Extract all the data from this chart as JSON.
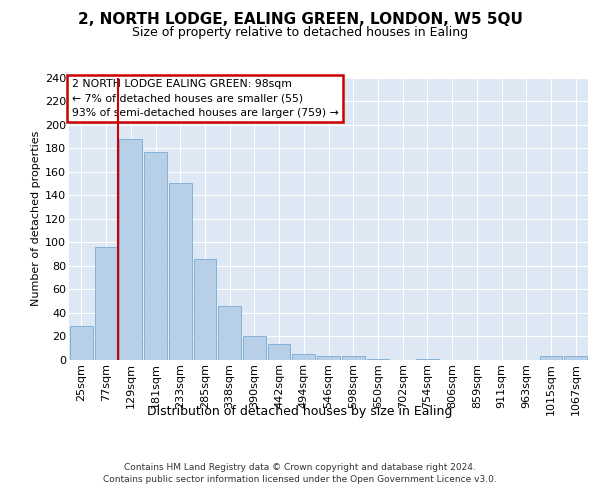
{
  "title1": "2, NORTH LODGE, EALING GREEN, LONDON, W5 5QU",
  "title2": "Size of property relative to detached houses in Ealing",
  "xlabel": "Distribution of detached houses by size in Ealing",
  "ylabel": "Number of detached properties",
  "bar_labels": [
    "25sqm",
    "77sqm",
    "129sqm",
    "181sqm",
    "233sqm",
    "285sqm",
    "338sqm",
    "390sqm",
    "442sqm",
    "494sqm",
    "546sqm",
    "598sqm",
    "650sqm",
    "702sqm",
    "754sqm",
    "806sqm",
    "859sqm",
    "911sqm",
    "963sqm",
    "1015sqm",
    "1067sqm"
  ],
  "bar_heights": [
    29,
    96,
    188,
    177,
    150,
    86,
    46,
    20,
    14,
    5,
    3,
    3,
    1,
    0,
    1,
    0,
    0,
    0,
    0,
    3,
    3
  ],
  "bar_color": "#b8cfe8",
  "bar_edge_color": "#7aabd4",
  "vline_x": 1.5,
  "vline_color": "#cc0000",
  "annotation_text": "2 NORTH LODGE EALING GREEN: 98sqm\n← 7% of detached houses are smaller (55)\n93% of semi-detached houses are larger (759) →",
  "annotation_box_color": "#ffffff",
  "annotation_box_edge": "#cc0000",
  "ylim": [
    0,
    240
  ],
  "yticks": [
    0,
    20,
    40,
    60,
    80,
    100,
    120,
    140,
    160,
    180,
    200,
    220,
    240
  ],
  "footer1": "Contains HM Land Registry data © Crown copyright and database right 2024.",
  "footer2": "Contains public sector information licensed under the Open Government Licence v3.0.",
  "bg_color": "#dde8f4",
  "fig_bg_color": "#ffffff",
  "grid_color": "#ffffff",
  "title1_fontsize": 11,
  "title2_fontsize": 9,
  "ylabel_fontsize": 8,
  "xlabel_fontsize": 9,
  "tick_fontsize": 8,
  "footer_fontsize": 6.5
}
